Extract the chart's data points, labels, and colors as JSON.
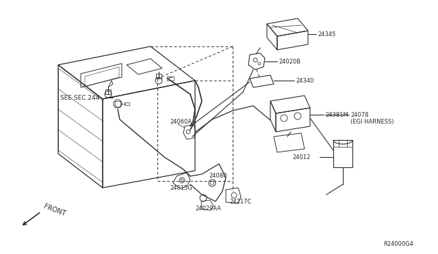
{
  "bg_color": "#ffffff",
  "line_color": "#2a2a2a",
  "fig_width": 6.4,
  "fig_height": 3.72,
  "dpi": 100,
  "labels": {
    "see_sec": "SEE SEC.244",
    "front": "FRONT",
    "p24345": "24345",
    "p24020B": "24020B",
    "p24340": "24340",
    "p24381M": "24381M",
    "p24078a": "24078",
    "p24078b": "(EGI HARNESS)",
    "p24012": "24012",
    "p24060A": "24060A",
    "p24080": "24080",
    "p24015G": "24015G",
    "p24029AA": "24029AA",
    "p24217C": "24217C",
    "ref": "R24000G4"
  }
}
